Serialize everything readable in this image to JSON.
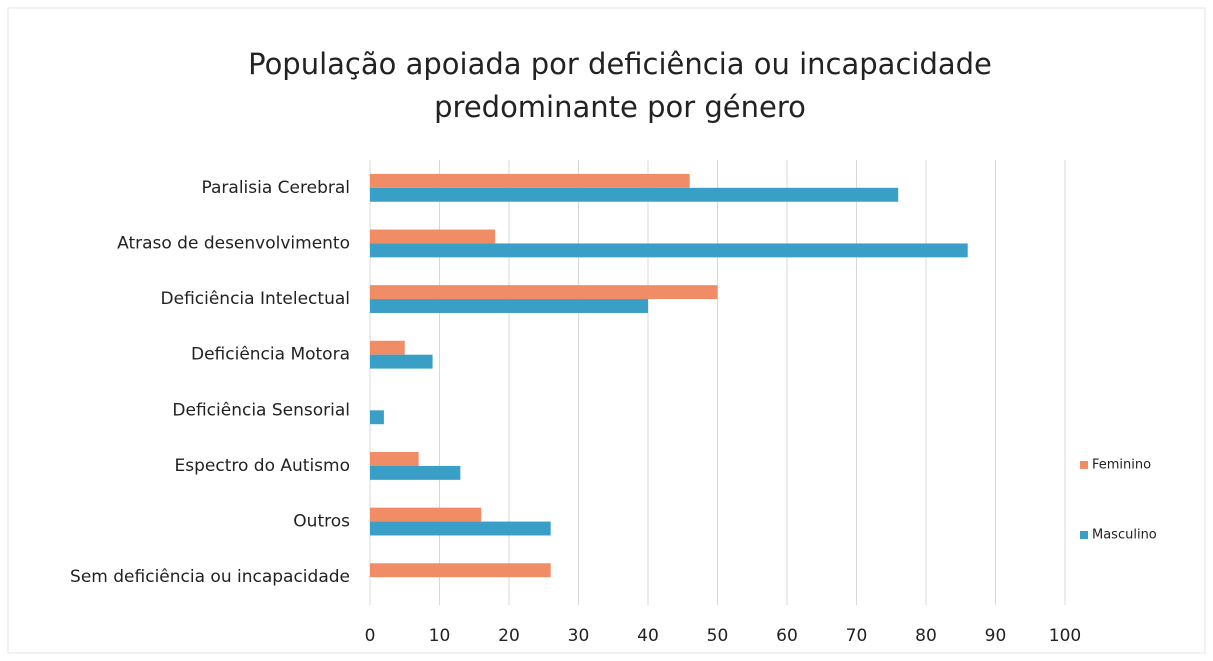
{
  "chart_data": {
    "type": "barh",
    "title": [
      "População apoiada por deficiência ou incapacidade",
      "predominante por género"
    ],
    "categories": [
      "Paralisia Cerebral",
      "Atraso de desenvolvimento",
      "Deficiência Intelectual",
      "Deficiência Motora",
      "Deficiência Sensorial",
      "Espectro do Autismo",
      "Outros",
      "Sem deficiência ou incapacidade"
    ],
    "series": [
      {
        "name": "Feminino",
        "color": "#f08c66",
        "values": [
          46,
          18,
          50,
          5,
          0,
          7,
          16,
          26
        ]
      },
      {
        "name": "Masculino",
        "color": "#3a9fc6",
        "values": [
          76,
          86,
          40,
          9,
          2,
          13,
          26,
          0
        ]
      }
    ],
    "xlim": [
      0,
      100
    ],
    "xticks": [
      0,
      10,
      20,
      30,
      40,
      50,
      60,
      70,
      80,
      90,
      100
    ],
    "grid": true,
    "legend": "right"
  }
}
